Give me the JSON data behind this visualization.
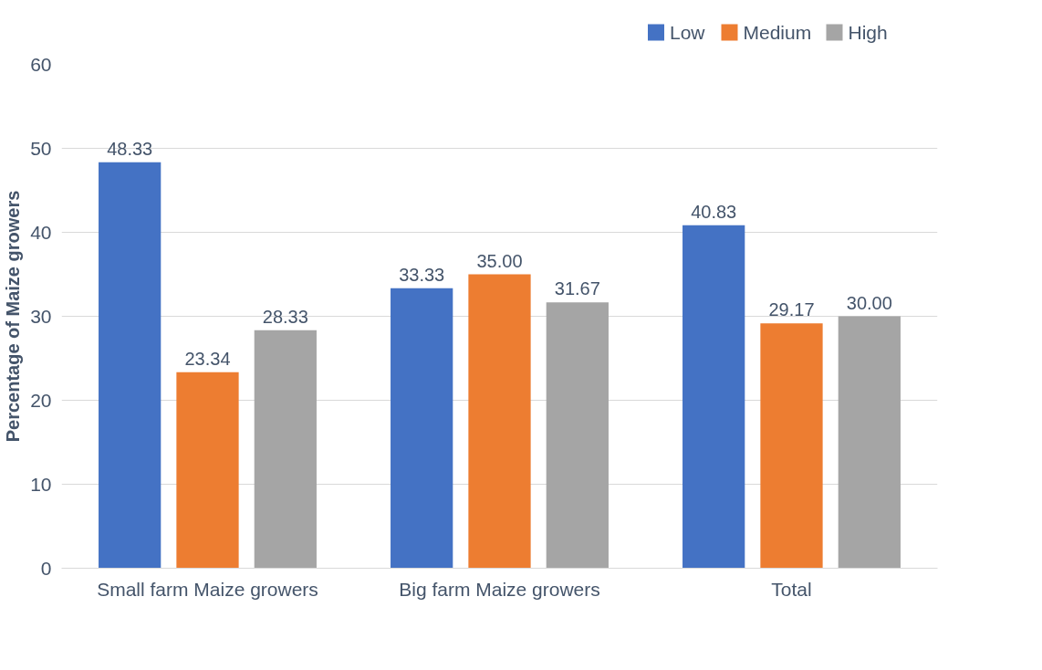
{
  "chart_data": {
    "type": "bar",
    "ylabel": "Percentage of Maize growers",
    "categories": [
      "Small farm Maize growers",
      "Big farm Maize growers",
      "Total"
    ],
    "series": [
      {
        "name": "Low",
        "color": "#4472c4",
        "values": [
          48.33,
          33.33,
          40.83
        ],
        "value_labels": [
          "48.33",
          "33.33",
          "40.83"
        ]
      },
      {
        "name": "Medium",
        "color": "#ed7d31",
        "values": [
          23.34,
          35.0,
          29.17
        ],
        "value_labels": [
          "23.34",
          "35.00",
          "29.17"
        ]
      },
      {
        "name": "High",
        "color": "#a5a5a5",
        "values": [
          28.33,
          31.67,
          30.0
        ],
        "value_labels": [
          "28.33",
          "31.67",
          "30.00"
        ]
      }
    ],
    "ylim": [
      0,
      60
    ],
    "yticks": [
      0,
      10,
      20,
      30,
      40,
      50,
      60
    ],
    "grid": "y",
    "legend": "top right"
  }
}
